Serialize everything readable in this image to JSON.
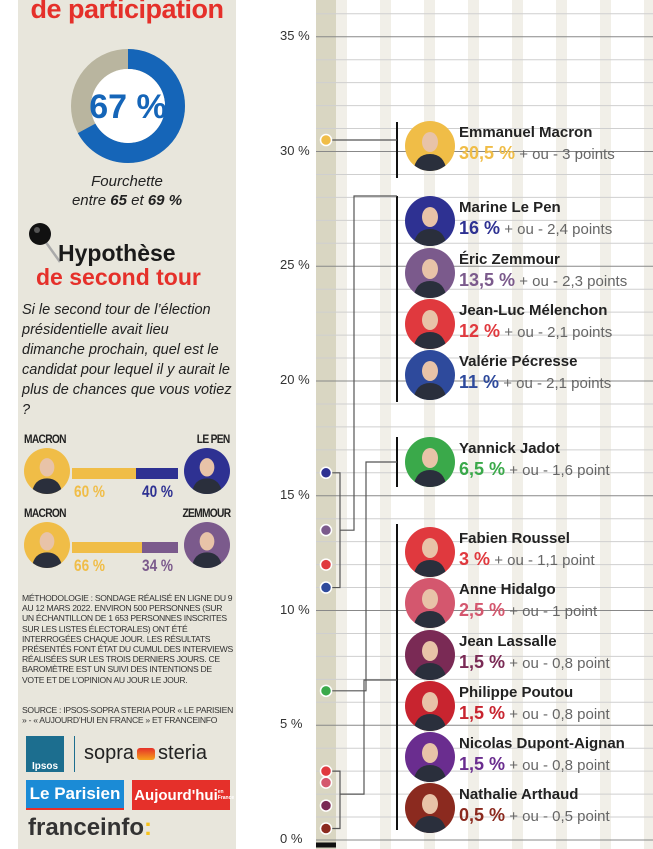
{
  "participation": {
    "title": "de participation",
    "value": 67,
    "label": "67 %",
    "range_text": [
      "Fourchette",
      "entre ",
      "65",
      " et ",
      "69 %"
    ],
    "color": "#1565b8",
    "rest_color": "#b9b59f"
  },
  "second_tour": {
    "title_line1": "Hypothèse",
    "title_line2": "de second tour",
    "question": "Si le second tour de l’élection présidentielle avait lieu dimanche prochain, quel est le candidat pour lequel il y aurait le plus de chances que vous votiez ?",
    "duels": [
      {
        "left": "MACRON",
        "right": "LE PEN",
        "left_pct": 60,
        "right_pct": 40,
        "left_label": "60 %",
        "right_label": "40 %",
        "left_color": "#f0bd47",
        "right_color": "#2e3192"
      },
      {
        "left": "MACRON",
        "right": "ZEMMOUR",
        "left_pct": 66,
        "right_pct": 34,
        "left_label": "66 %",
        "right_label": "34 %",
        "left_color": "#f0bd47",
        "right_color": "#7b5a8c"
      }
    ]
  },
  "methodology": "Méthodologie : sondage réalisé en ligne du 9 au 12 mars 2022. Environ 500 personnes (sur un échantillon de 1 653 personnes inscrites sur les listes électorales) ont été interrogées chaque jour. Les résultats présentés font état du cumul des interviews réalisées sur les trois derniers jours. Ce baromètre est un suivi des intentions de vote et de l’opinion au jour le jour.",
  "source": "SOURCE : IPSOS-SOPRA STERIA POUR « LE PARISIEN » - « AUJOURD’HUI EN FRANCE » ET FRANCEINFO",
  "logos": [
    "Ipsos",
    "sopra",
    "steria",
    "Le Parisien",
    "Aujourd'hui",
    "en France",
    "franceinfo",
    ":"
  ],
  "chart_data": {
    "type": "scatter",
    "ylim": [
      0,
      35
    ],
    "yticks": [
      0,
      5,
      10,
      15,
      20,
      25,
      30,
      35
    ],
    "ytick_labels": [
      "0 %",
      "5 %",
      "10 %",
      "15 %",
      "20 %",
      "25 %",
      "30 %",
      "35 %"
    ],
    "grid": true,
    "candidates": [
      {
        "name": "Emmanuel Macron",
        "value": 30.5,
        "label": "30,5 %",
        "margin": "+ ou - 3 points",
        "color": "#f0bd47"
      },
      {
        "name": "Marine Le Pen",
        "value": 16,
        "label": "16 %",
        "margin": "+ ou - 2,4 points",
        "color": "#2e3192"
      },
      {
        "name": "Éric Zemmour",
        "value": 13.5,
        "label": "13,5 %",
        "margin": "+ ou - 2,3 points",
        "color": "#7b5a8c"
      },
      {
        "name": "Jean-Luc Mélenchon",
        "value": 12,
        "label": "12 %",
        "margin": "+ ou - 2,1 points",
        "color": "#e0393e"
      },
      {
        "name": "Valérie Pécresse",
        "value": 11,
        "label": "11 %",
        "margin": "+ ou - 2,1 points",
        "color": "#2e4a9c"
      },
      {
        "name": "Yannick Jadot",
        "value": 6.5,
        "label": "6,5 %",
        "margin": "+ ou - 1,6 point",
        "color": "#3aa94a"
      },
      {
        "name": "Fabien Roussel",
        "value": 3,
        "label": "3 %",
        "margin": "+ ou - 1,1 point",
        "color": "#e0393e"
      },
      {
        "name": "Anne Hidalgo",
        "value": 2.5,
        "label": "2,5 %",
        "margin": "+ ou - 1 point",
        "color": "#d4576e"
      },
      {
        "name": "Jean Lassalle",
        "value": 1.5,
        "label": "1,5 %",
        "margin": "+ ou - 0,8 point",
        "color": "#7a2a55"
      },
      {
        "name": "Philippe Poutou",
        "value": 1.5,
        "label": "1,5 %",
        "margin": "+ ou - 0,8 point",
        "color": "#c8242f"
      },
      {
        "name": "Nicolas Dupont-Aignan",
        "value": 1.5,
        "label": "1,5 %",
        "margin": "+ ou - 0,8 point",
        "color": "#6a2d8f"
      },
      {
        "name": "Nathalie Arthaud",
        "value": 0.5,
        "label": "0,5 %",
        "margin": "+ ou - 0,5 point",
        "color": "#8b2a1f"
      }
    ]
  }
}
